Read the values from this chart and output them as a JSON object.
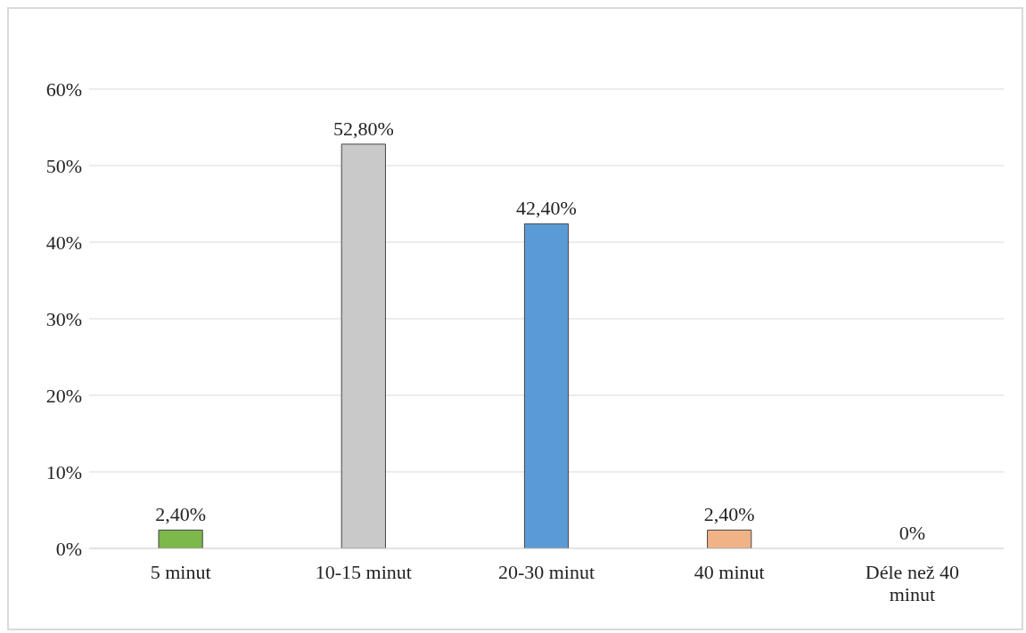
{
  "chart_data": {
    "type": "bar",
    "categories": [
      "5 minut",
      "10-15 minut",
      "20-30 minut",
      "40 minut",
      "Déle než 40 minut"
    ],
    "values": [
      2.4,
      52.8,
      42.4,
      2.4,
      0
    ],
    "colors": [
      "#7cb84a",
      "#c9c9c9",
      "#5b9bd5",
      "#f1b386",
      "#a5a5a5"
    ],
    "value_labels": [
      "2,40%",
      "52,80%",
      "42,40%",
      "2,40%",
      "0%"
    ],
    "ylim": [
      0,
      60
    ],
    "yticks": [
      {
        "value": 0,
        "label": "0%"
      },
      {
        "value": 10,
        "label": "10%"
      },
      {
        "value": 20,
        "label": "20%"
      },
      {
        "value": 30,
        "label": "30%"
      },
      {
        "value": 40,
        "label": "40%"
      },
      {
        "value": 50,
        "label": "50%"
      },
      {
        "value": 60,
        "label": "60%"
      }
    ],
    "grid": "y"
  }
}
